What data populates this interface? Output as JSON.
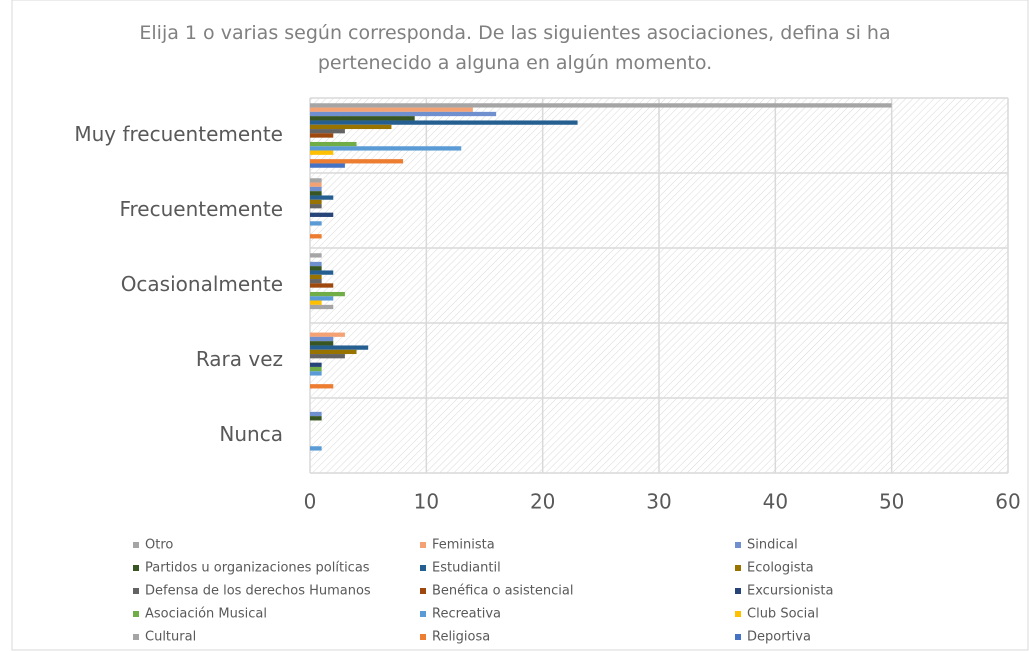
{
  "chart_data": {
    "type": "hbar",
    "title": "Elija 1 o varias según corresponda. De las siguientes asociaciones, defina si ha pertenecido a alguna en algún momento.",
    "categories": [
      "Muy frecuentemente",
      "Frecuentemente",
      "Ocasionalmente",
      "Rara vez",
      "Nunca"
    ],
    "series": [
      {
        "name": "Otro",
        "color": "#a5a5a5",
        "values": [
          50,
          1,
          1,
          0,
          0
        ]
      },
      {
        "name": "Feminista",
        "color": "#f4a273",
        "values": [
          14,
          1,
          0,
          3,
          0
        ]
      },
      {
        "name": "Sindical",
        "color": "#6f8fcf",
        "values": [
          16,
          1,
          1,
          2,
          1
        ]
      },
      {
        "name": "Partidos u organizaciones políticas",
        "color": "#375623",
        "values": [
          9,
          1,
          1,
          2,
          1
        ]
      },
      {
        "name": "Estudiantil",
        "color": "#255e91",
        "values": [
          23,
          2,
          2,
          5,
          0
        ]
      },
      {
        "name": "Ecologista",
        "color": "#997300",
        "values": [
          7,
          1,
          1,
          4,
          0
        ]
      },
      {
        "name": "Defensa de los derechos Humanos",
        "color": "#636363",
        "values": [
          3,
          1,
          1,
          3,
          0
        ]
      },
      {
        "name": "Benéfica o asistencial",
        "color": "#9e480e",
        "values": [
          2,
          0,
          2,
          0,
          0
        ]
      },
      {
        "name": "Excursionista",
        "color": "#264478",
        "values": [
          0,
          2,
          0,
          1,
          0
        ]
      },
      {
        "name": "Asociación Musical",
        "color": "#70ad47",
        "values": [
          4,
          0,
          3,
          1,
          0
        ]
      },
      {
        "name": "Recreativa",
        "color": "#5b9bd5",
        "values": [
          13,
          1,
          2,
          1,
          1
        ]
      },
      {
        "name": "Club Social",
        "color": "#ffc000",
        "values": [
          2,
          0,
          1,
          0,
          0
        ]
      },
      {
        "name": "Cultural",
        "color": "#a5a5a5",
        "values": [
          0,
          0,
          2,
          0,
          0
        ]
      },
      {
        "name": "Religiosa",
        "color": "#ed7d31",
        "values": [
          8,
          1,
          0,
          2,
          0
        ]
      },
      {
        "name": "Deportiva",
        "color": "#4472c4",
        "values": [
          3,
          0,
          0,
          0,
          0
        ]
      }
    ],
    "xlim": [
      0,
      60
    ],
    "xticks": [
      0,
      10,
      20,
      30,
      40,
      50,
      60
    ],
    "grid": true
  }
}
